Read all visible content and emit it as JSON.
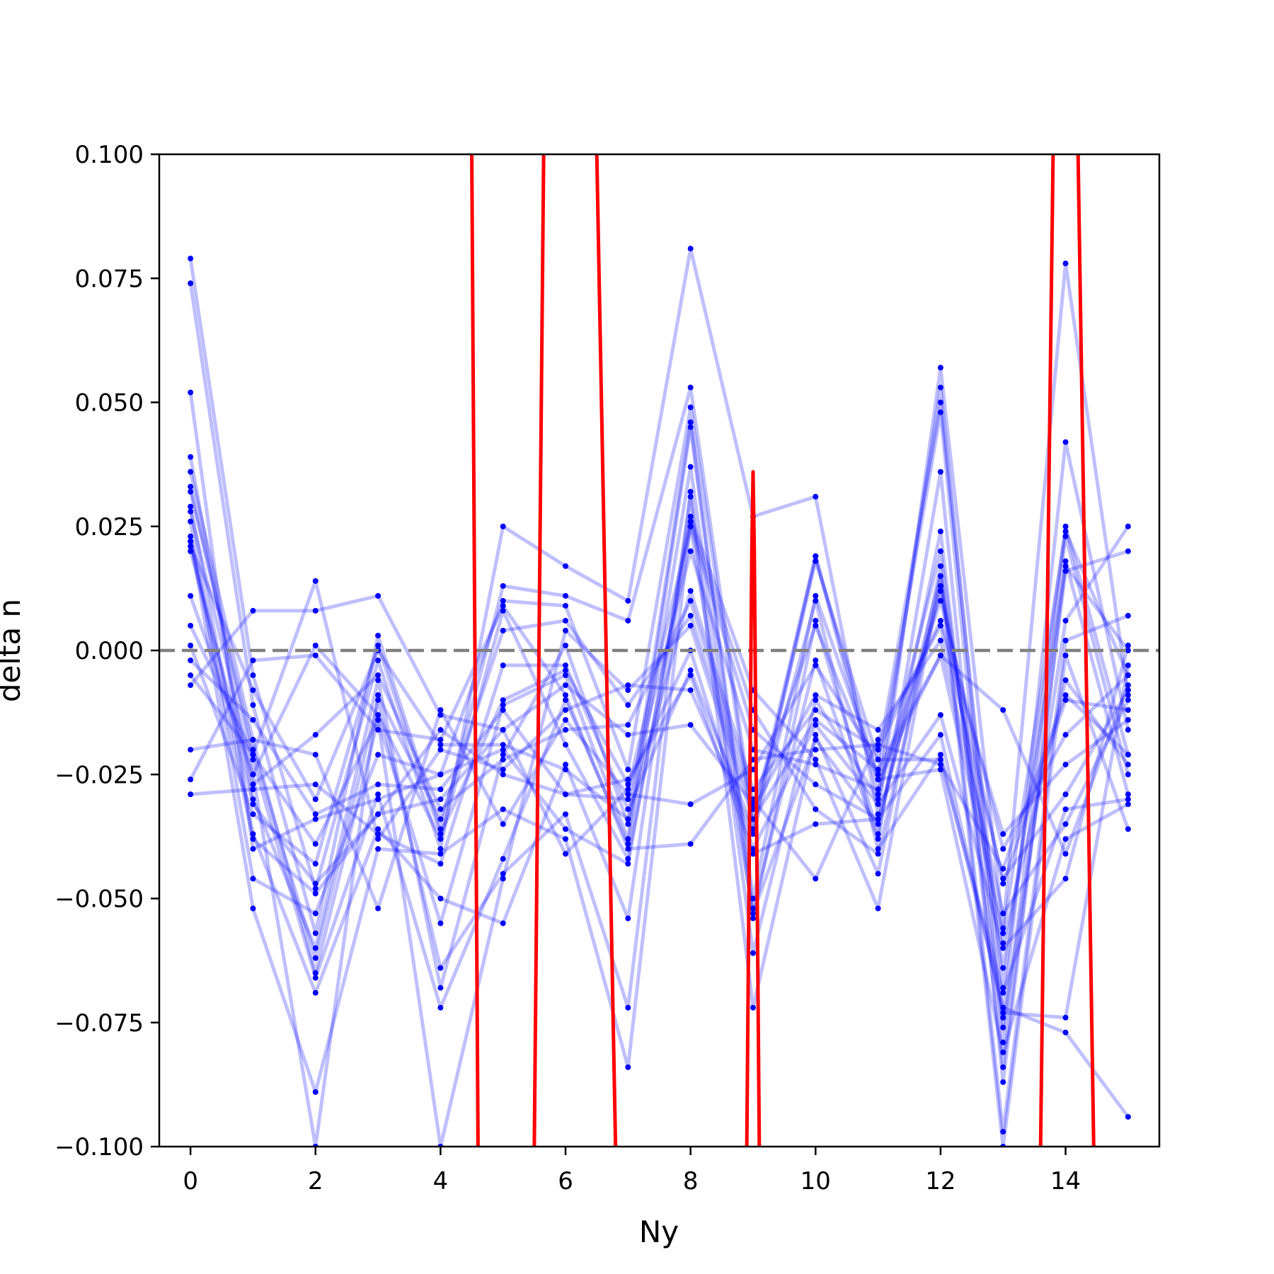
{
  "chart_data": {
    "type": "line",
    "xlabel": "Ny",
    "ylabel": "delta n",
    "xlim": [
      -0.5,
      15.5
    ],
    "ylim": [
      -0.1,
      0.1
    ],
    "x_ticks": [
      0,
      2,
      4,
      6,
      8,
      10,
      12,
      14
    ],
    "x_tick_labels": [
      "0",
      "2",
      "4",
      "6",
      "8",
      "10",
      "12",
      "14"
    ],
    "y_ticks": [
      -0.1,
      -0.075,
      -0.05,
      -0.025,
      0.0,
      0.025,
      0.05,
      0.075,
      0.1
    ],
    "y_tick_labels": [
      "−0.100",
      "−0.075",
      "−0.050",
      "−0.025",
      "0.000",
      "0.025",
      "0.050",
      "0.075",
      "0.100"
    ],
    "reference_line": {
      "y": 0.0,
      "style": "dashed",
      "color": "#808080"
    },
    "colors": {
      "trace_line": "#0000ff",
      "trace_alpha": 0.25,
      "marker": "#0000ff",
      "highlight": "#ff0000"
    },
    "grid": false,
    "x": [
      0,
      1,
      2,
      3,
      4,
      5,
      6,
      7,
      8,
      9,
      10,
      11,
      12,
      13,
      14,
      15
    ],
    "series": [
      {
        "values": [
          0.079,
          -0.005,
          -0.048,
          -0.002,
          -0.04,
          0.025,
          0.017,
          0.01,
          0.081,
          0.027,
          0.031,
          -0.033,
          0.057,
          -0.056,
          0.078,
          -0.009
        ]
      },
      {
        "values": [
          0.074,
          -0.011,
          -0.057,
          0.003,
          -0.036,
          0.013,
          0.011,
          0.006,
          0.053,
          -0.034,
          0.019,
          -0.029,
          0.053,
          -0.074,
          0.042,
          -0.016
        ]
      },
      {
        "values": [
          0.052,
          -0.04,
          -0.034,
          -0.03,
          -0.025,
          0.01,
          0.009,
          -0.024,
          0.049,
          -0.036,
          0.018,
          -0.022,
          0.05,
          -0.068,
          0.025,
          -0.021
        ]
      },
      {
        "values": [
          0.039,
          -0.03,
          -0.06,
          -0.006,
          -0.068,
          -0.021,
          0.001,
          -0.035,
          0.046,
          -0.05,
          0.011,
          -0.025,
          0.048,
          -0.079,
          0.023,
          -0.025
        ]
      },
      {
        "values": [
          0.036,
          -0.018,
          -0.065,
          -0.014,
          -0.055,
          -0.011,
          -0.005,
          -0.038,
          0.045,
          -0.052,
          -0.002,
          -0.038,
          0.036,
          -0.087,
          0.018,
          -0.029
        ]
      },
      {
        "values": [
          0.033,
          -0.022,
          -0.066,
          -0.029,
          -0.072,
          -0.042,
          -0.01,
          -0.039,
          0.037,
          -0.054,
          0.006,
          -0.037,
          0.024,
          -0.084,
          0.016,
          0.02
        ]
      },
      {
        "values": [
          0.032,
          -0.02,
          -0.062,
          -0.01,
          -0.064,
          -0.045,
          -0.033,
          -0.072,
          0.032,
          -0.061,
          -0.01,
          -0.03,
          0.02,
          -0.076,
          0.006,
          0.025
        ]
      },
      {
        "values": [
          0.029,
          -0.037,
          -0.069,
          -0.036,
          -0.05,
          -0.055,
          -0.023,
          -0.054,
          0.031,
          -0.072,
          -0.017,
          -0.045,
          0.017,
          -0.097,
          0.002,
          0.007
        ]
      },
      {
        "values": [
          0.026,
          -0.046,
          -0.053,
          -0.021,
          -0.025,
          -0.02,
          -0.036,
          -0.043,
          0.027,
          -0.008,
          -0.022,
          -0.052,
          0.015,
          -0.1,
          -0.001,
          -0.036
        ]
      },
      {
        "values": [
          0.023,
          -0.052,
          -0.089,
          -0.04,
          -0.041,
          -0.032,
          -0.038,
          -0.084,
          0.026,
          -0.012,
          -0.032,
          -0.041,
          0.013,
          -0.059,
          -0.006,
          -0.023
        ]
      },
      {
        "values": [
          0.022,
          -0.038,
          -0.049,
          -0.033,
          -0.03,
          -0.016,
          -0.041,
          -0.028,
          0.025,
          -0.016,
          -0.027,
          -0.034,
          0.012,
          -0.047,
          -0.01,
          -0.012
        ]
      },
      {
        "values": [
          0.022,
          -0.031,
          -0.047,
          -0.033,
          -0.016,
          -0.025,
          -0.029,
          -0.03,
          0.02,
          -0.02,
          -0.023,
          -0.028,
          0.01,
          -0.04,
          -0.017,
          -0.005
        ]
      },
      {
        "values": [
          0.021,
          -0.008,
          -0.03,
          0.0,
          -0.019,
          -0.019,
          -0.024,
          -0.034,
          0.012,
          -0.028,
          -0.012,
          -0.02,
          0.006,
          -0.037,
          -0.023,
          -0.014
        ]
      },
      {
        "values": [
          0.02,
          -0.027,
          -0.017,
          -0.005,
          -0.032,
          -0.022,
          -0.016,
          -0.015,
          0.01,
          -0.03,
          -0.046,
          -0.018,
          0.005,
          -0.046,
          -0.029,
          -0.008
        ]
      },
      {
        "values": [
          0.011,
          -0.025,
          -0.1,
          -0.009,
          -0.034,
          0.004,
          0.006,
          -0.011,
          0.007,
          -0.032,
          -0.009,
          -0.016,
          0.002,
          -0.053,
          -0.035,
          -0.01
        ]
      },
      {
        "values": [
          0.005,
          -0.021,
          -0.039,
          -0.014,
          -0.1,
          -0.046,
          0.004,
          -0.008,
          0.005,
          -0.034,
          -0.014,
          -0.024,
          -0.001,
          -0.012,
          -0.041,
          -0.007
        ]
      },
      {
        "values": [
          0.001,
          -0.033,
          -0.043,
          0.001,
          -0.037,
          -0.01,
          -0.004,
          -0.027,
          0.0,
          -0.04,
          -0.015,
          -0.031,
          -0.013,
          -0.06,
          -0.046,
          0.001
        ]
      },
      {
        "values": [
          -0.002,
          -0.014,
          -0.033,
          -0.027,
          -0.028,
          -0.012,
          -0.029,
          -0.026,
          -0.005,
          -0.041,
          -0.035,
          -0.034,
          -0.017,
          -0.073,
          -0.074,
          -0.003
        ]
      },
      {
        "values": [
          -0.005,
          -0.021,
          0.014,
          -0.038,
          -0.02,
          -0.024,
          -0.012,
          -0.007,
          -0.008,
          -0.037,
          0.01,
          -0.04,
          -0.021,
          -0.072,
          -0.077,
          -0.094
        ]
      },
      {
        "values": [
          -0.007,
          0.008,
          0.008,
          0.011,
          -0.013,
          -0.016,
          -0.007,
          -0.017,
          -0.015,
          -0.031,
          0.005,
          -0.026,
          -0.024,
          -0.081,
          -0.038,
          -0.031
        ]
      },
      {
        "values": [
          -0.02,
          -0.018,
          -0.021,
          -0.052,
          -0.012,
          -0.035,
          -0.014,
          -0.029,
          -0.031,
          -0.024,
          -0.003,
          -0.022,
          -0.022,
          -0.069,
          -0.032,
          -0.03
        ]
      },
      {
        "values": [
          -0.026,
          -0.002,
          -0.001,
          -0.016,
          -0.018,
          0.009,
          -0.009,
          -0.04,
          -0.039,
          -0.022,
          -0.02,
          -0.019,
          -0.023,
          -0.044,
          -0.009,
          -0.021
        ]
      },
      {
        "values": [
          -0.029,
          -0.028,
          -0.027,
          -0.037,
          -0.043,
          -0.003,
          -0.003,
          -0.032,
          -0.004,
          -0.036,
          0.019,
          -0.026,
          -0.001,
          -0.057,
          0.024,
          -0.005
        ]
      },
      {
        "values": [
          0.028,
          -0.025,
          0.001,
          -0.013,
          -0.038,
          0.008,
          -0.019,
          -0.042,
          0.025,
          -0.053,
          -0.018,
          -0.035,
          0.015,
          -0.064,
          0.017,
          0.0
        ]
      }
    ],
    "highlight_series": [
      {
        "x": [
          4.5,
          4.6
        ],
        "y": [
          0.1,
          -0.1
        ]
      },
      {
        "x": [
          5.5,
          5.65
        ],
        "y": [
          -0.1,
          0.1
        ]
      },
      {
        "x": [
          6.5,
          6.8
        ],
        "y": [
          0.1,
          -0.1
        ]
      },
      {
        "x": [
          8.9,
          8.98,
          9.0,
          9.02,
          9.1
        ],
        "y": [
          -0.1,
          0.02,
          0.036,
          0.02,
          -0.1
        ]
      },
      {
        "x": [
          13.6,
          13.8
        ],
        "y": [
          -0.1,
          0.1
        ]
      },
      {
        "x": [
          14.2,
          14.45
        ],
        "y": [
          0.1,
          -0.1
        ]
      }
    ]
  }
}
